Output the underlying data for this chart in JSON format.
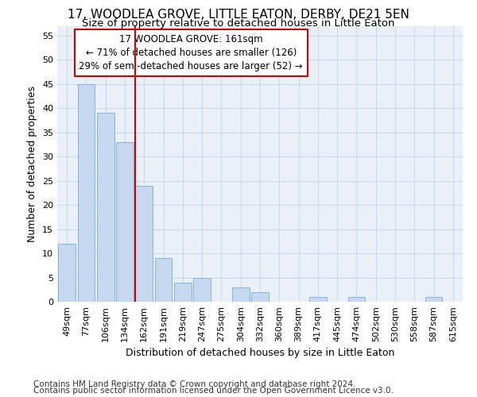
{
  "title1": "17, WOODLEA GROVE, LITTLE EATON, DERBY, DE21 5EN",
  "title2": "Size of property relative to detached houses in Little Eaton",
  "xlabel": "Distribution of detached houses by size in Little Eaton",
  "ylabel": "Number of detached properties",
  "categories": [
    "49sqm",
    "77sqm",
    "106sqm",
    "134sqm",
    "162sqm",
    "191sqm",
    "219sqm",
    "247sqm",
    "275sqm",
    "304sqm",
    "332sqm",
    "360sqm",
    "389sqm",
    "417sqm",
    "445sqm",
    "474sqm",
    "502sqm",
    "530sqm",
    "558sqm",
    "587sqm",
    "615sqm"
  ],
  "values": [
    12,
    45,
    39,
    33,
    24,
    9,
    4,
    5,
    0,
    3,
    2,
    0,
    0,
    1,
    0,
    1,
    0,
    0,
    0,
    1,
    0
  ],
  "bar_color": "#c5d8f0",
  "bar_edge_color": "#7aadd4",
  "vline_color": "#cc0000",
  "vline_index": 4,
  "annotation_text": "17 WOODLEA GROVE: 161sqm\n← 71% of detached houses are smaller (126)\n29% of semi-detached houses are larger (52) →",
  "annotation_box_color": "#ffffff",
  "annotation_box_edge_color": "#cc0000",
  "ylim": [
    0,
    57
  ],
  "yticks": [
    0,
    5,
    10,
    15,
    20,
    25,
    30,
    35,
    40,
    45,
    50,
    55
  ],
  "grid_color": "#d0d8e8",
  "background_color": "#eaf0f8",
  "footer1": "Contains HM Land Registry data © Crown copyright and database right 2024.",
  "footer2": "Contains public sector information licensed under the Open Government Licence v3.0.",
  "title_fontsize": 11,
  "subtitle_fontsize": 9.5,
  "axis_label_fontsize": 9,
  "tick_fontsize": 8,
  "annotation_fontsize": 8.5,
  "footer_fontsize": 7.5
}
